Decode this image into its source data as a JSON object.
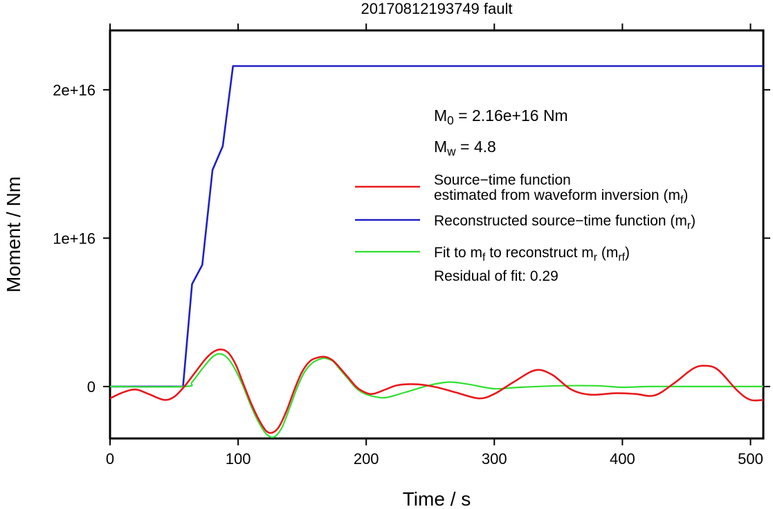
{
  "chart_data": {
    "type": "line",
    "title": "20170812193749 fault",
    "xlabel": "Time / s",
    "ylabel": "Moment / Nm",
    "xlim": [
      0,
      510
    ],
    "ylim": [
      -3500000000000000.0,
      2.4e+16
    ],
    "xticks": [
      0,
      100,
      200,
      300,
      400,
      500
    ],
    "xtick_labels": [
      "0",
      "100",
      "200",
      "300",
      "400",
      "500"
    ],
    "yticks": [
      0,
      1e+16,
      2e+16
    ],
    "ytick_labels": [
      "0",
      "1e+16",
      "2e+16"
    ],
    "grid": false,
    "legend_position": "right",
    "annotations": {
      "m0": {
        "symbol": "M",
        "sub": "0",
        "text": " = 2.16e+16 Nm"
      },
      "mw": {
        "symbol": "M",
        "sub": "w",
        "text": " = 4.8"
      },
      "residual": "Residual of fit: 0.29"
    },
    "series": [
      {
        "key": "red",
        "color": "#e8191c",
        "legend_lines": [
          [
            {
              "t": "Source−time function"
            }
          ],
          [
            {
              "t": "estimated from waveform inversion (m"
            },
            {
              "t": "f",
              "sub": true
            },
            {
              "t": ")"
            }
          ]
        ],
        "x": [
          0,
          10,
          20,
          30,
          42,
          50,
          58,
          66,
          74,
          80,
          86,
          92,
          98,
          104,
          110,
          116,
          122,
          127,
          132,
          138,
          144,
          150,
          156,
          162,
          168,
          174,
          180,
          186,
          192,
          198,
          205,
          215,
          225,
          240,
          255,
          270,
          288,
          300,
          315,
          332,
          345,
          360,
          375,
          395,
          410,
          425,
          440,
          455,
          465,
          475,
          490,
          500,
          510
        ],
        "y": [
          -800000000000000.0,
          -400000000000000.0,
          -200000000000000.0,
          -500000000000000.0,
          -900000000000000.0,
          -700000000000000.0,
          0,
          900000000000000.0,
          1800000000000000.0,
          2300000000000000.0,
          2500000000000000.0,
          2300000000000000.0,
          1500000000000000.0,
          200000000000000.0,
          -1100000000000000.0,
          -2200000000000000.0,
          -3000000000000000.0,
          -3100000000000000.0,
          -2700000000000000.0,
          -1600000000000000.0,
          -200000000000000.0,
          1000000000000000.0,
          1700000000000000.0,
          1950000000000000.0,
          2000000000000000.0,
          1750000000000000.0,
          1200000000000000.0,
          600000000000000.0,
          0,
          -350000000000000.0,
          -500000000000000.0,
          -200000000000000.0,
          100000000000000.0,
          150000000000000.0,
          -50000000000000.0,
          -400000000000000.0,
          -800000000000000.0,
          -500000000000000.0,
          300000000000000.0,
          1100000000000000.0,
          800000000000000.0,
          -200000000000000.0,
          -550000000000000.0,
          -450000000000000.0,
          -500000000000000.0,
          -600000000000000.0,
          200000000000000.0,
          1200000000000000.0,
          1400000000000000.0,
          1100000000000000.0,
          -300000000000000.0,
          -900000000000000.0,
          -900000000000000.0
        ]
      },
      {
        "key": "blue",
        "color": "#1e20c8",
        "legend_lines": [
          [
            {
              "t": "Reconstructed source−time function (m"
            },
            {
              "t": "r",
              "sub": true
            },
            {
              "t": ")"
            }
          ]
        ],
        "x": [
          0,
          57,
          64,
          72,
          80,
          88,
          96,
          510
        ],
        "y": [
          0,
          0,
          6900000000000000.0,
          8200000000000000.0,
          1.46e+16,
          1.62e+16,
          2.16e+16,
          2.16e+16
        ]
      },
      {
        "key": "green",
        "color": "#2fe02f",
        "legend_lines": [
          [
            {
              "t": "Fit to m"
            },
            {
              "t": "f",
              "sub": true
            },
            {
              "t": " to reconstruct m"
            },
            {
              "t": "r",
              "sub": true
            },
            {
              "t": " (m"
            },
            {
              "t": "rf",
              "sub": true
            },
            {
              "t": ")"
            }
          ]
        ],
        "x": [
          0,
          58,
          64,
          72,
          80,
          86,
          92,
          98,
          104,
          110,
          116,
          122,
          128,
          134,
          140,
          146,
          152,
          158,
          164,
          168,
          174,
          180,
          186,
          192,
          198,
          205,
          215,
          230,
          250,
          265,
          280,
          300,
          320,
          350,
          380,
          400,
          420,
          450,
          480,
          510
        ],
        "y": [
          0,
          0,
          300000000000000.0,
          1200000000000000.0,
          2000000000000000.0,
          2200000000000000.0,
          1900000000000000.0,
          1100000000000000.0,
          0,
          -1300000000000000.0,
          -2400000000000000.0,
          -3200000000000000.0,
          -3400000000000000.0,
          -2800000000000000.0,
          -1500000000000000.0,
          -100000000000000.0,
          1000000000000000.0,
          1600000000000000.0,
          1850000000000000.0,
          1900000000000000.0,
          1700000000000000.0,
          1100000000000000.0,
          500000000000000.0,
          -100000000000000.0,
          -450000000000000.0,
          -650000000000000.0,
          -750000000000000.0,
          -400000000000000.0,
          100000000000000.0,
          300000000000000.0,
          150000000000000.0,
          -150000000000000.0,
          -50000000000000.0,
          50000000000000.0,
          50000000000000.0,
          -50000000000000.0,
          0,
          0,
          0,
          0
        ]
      }
    ]
  }
}
